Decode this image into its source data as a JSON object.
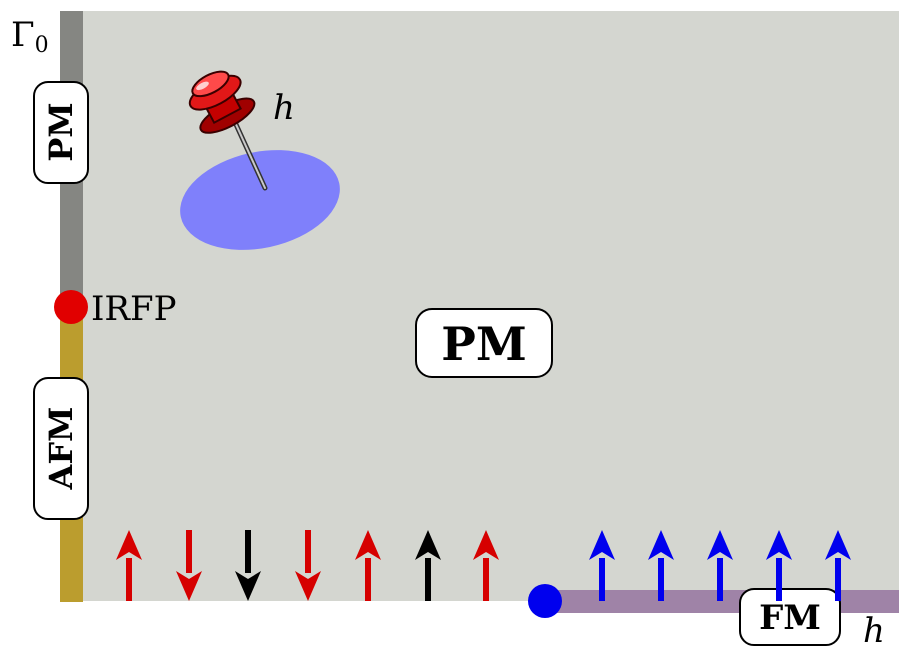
{
  "axes": {
    "vertical_symbol": "Γ",
    "vertical_subscript": "0",
    "horizontal_symbol": "h"
  },
  "regions": {
    "main_label": "PM",
    "vertical_upper_label": "PM",
    "vertical_lower_label": "AFM",
    "horizontal_label": "FM"
  },
  "points": {
    "critical_point_label": "IRFP"
  },
  "pin": {
    "label": "h"
  },
  "spins": {
    "disordered": [
      "up",
      "down",
      "down",
      "down",
      "up",
      "up",
      "up"
    ],
    "ferromagnetic": [
      "up",
      "up",
      "up",
      "up",
      "up"
    ]
  },
  "colors": {
    "background": "#d4d6d0",
    "pm_axis": "#858682",
    "afm_axis": "#bb9d2e",
    "fm_axis": "#9f83a7",
    "red_spin": "#d60000",
    "black_spin": "#000000",
    "blue_spin": "#0000ee",
    "irfp_point": "#e10000",
    "fm_point": "#0000ee",
    "pin_disk": "#7f80fb"
  }
}
